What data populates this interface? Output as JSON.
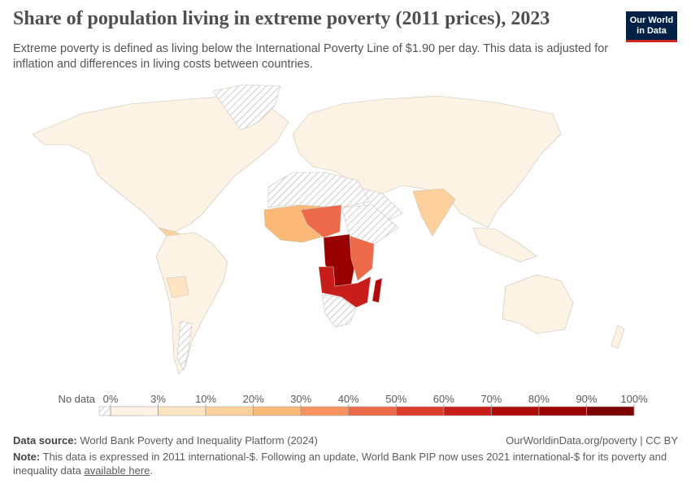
{
  "header": {
    "title": "Share of population living in extreme poverty (2011 prices), 2023",
    "subtitle": "Extreme poverty is defined as living below the International Poverty Line of $1.90 per day. This data is adjusted for inflation and differences in living costs between countries.",
    "logo": [
      "Our World",
      "in Data"
    ]
  },
  "legend": {
    "no_data": "No data",
    "ticks": [
      "0%",
      "3%",
      "10%",
      "20%",
      "30%",
      "40%",
      "50%",
      "60%",
      "70%",
      "80%",
      "90%",
      "100%"
    ],
    "colors": [
      "#fef3e4",
      "#fde4c2",
      "#fdd09c",
      "#fcb877",
      "#f8935f",
      "#ec6a4a",
      "#dd3d2d",
      "#c81e1b",
      "#b10a0a",
      "#990000",
      "#7d0000"
    ]
  },
  "footer": {
    "source_label": "Data source:",
    "source": "World Bank Poverty and Inequality Platform (2024)",
    "license": "OurWorldinData.org/poverty | CC BY",
    "note_label": "Note:",
    "note": "This data is expressed in 2011 international-$. Following an update, World Bank PIP now uses 2021 international-$ for its poverty and inequality data",
    "link": "available here",
    "end": "."
  }
}
